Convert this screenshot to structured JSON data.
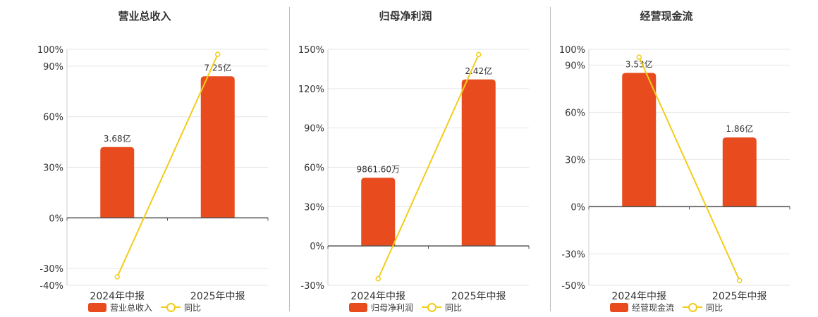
{
  "colors": {
    "bar": "#e84c1e",
    "line": "#f2cd1a",
    "axis": "#555555",
    "grid": "#e6e6e6"
  },
  "legend": {
    "line_label": "同比"
  },
  "chart_data": [
    {
      "type": "bar",
      "title": "营业总收入",
      "categories": [
        "2024年中报",
        "2025年中报"
      ],
      "series": [
        {
          "name": "营业总收入",
          "type": "bar",
          "values": [
            3.68,
            7.25
          ],
          "labels": [
            "3.68亿",
            "7.25亿"
          ]
        },
        {
          "name": "同比",
          "type": "line",
          "values": [
            -35,
            97
          ]
        }
      ],
      "y_axis": {
        "min": -40,
        "max": 100,
        "ticks": [
          -40,
          -30,
          0,
          30,
          60,
          90,
          100
        ],
        "tick_labels": [
          "-40%",
          "-30%",
          "0%",
          "30%",
          "60%",
          "90%",
          "100%"
        ]
      },
      "bar_heights_pct": [
        42,
        84
      ],
      "legend_position": "bottom"
    },
    {
      "type": "bar",
      "title": "归母净利润",
      "categories": [
        "2024年中报",
        "2025年中报"
      ],
      "series": [
        {
          "name": "归母净利润",
          "type": "bar",
          "values": [
            0.98616,
            2.42
          ],
          "labels": [
            "9861.60万",
            "2.42亿"
          ]
        },
        {
          "name": "同比",
          "type": "line",
          "values": [
            -25,
            146
          ]
        }
      ],
      "y_axis": {
        "min": -30,
        "max": 150,
        "ticks": [
          -30,
          0,
          30,
          60,
          90,
          120,
          150
        ],
        "tick_labels": [
          "-30%",
          "0%",
          "30%",
          "60%",
          "90%",
          "120%",
          "150%"
        ]
      },
      "bar_heights_pct": [
        52,
        127
      ],
      "legend_position": "bottom"
    },
    {
      "type": "bar",
      "title": "经营现金流",
      "categories": [
        "2024年中报",
        "2025年中报"
      ],
      "series": [
        {
          "name": "经营现金流",
          "type": "bar",
          "values": [
            3.53,
            1.86
          ],
          "labels": [
            "3.53亿",
            "1.86亿"
          ]
        },
        {
          "name": "同比",
          "type": "line",
          "values": [
            95,
            -47
          ]
        }
      ],
      "y_axis": {
        "min": -50,
        "max": 100,
        "ticks": [
          -50,
          -30,
          0,
          30,
          60,
          90,
          100
        ],
        "tick_labels": [
          "-50%",
          "-30%",
          "0%",
          "30%",
          "60%",
          "90%",
          "100%"
        ]
      },
      "bar_heights_pct": [
        85,
        44
      ],
      "legend_position": "bottom"
    }
  ]
}
